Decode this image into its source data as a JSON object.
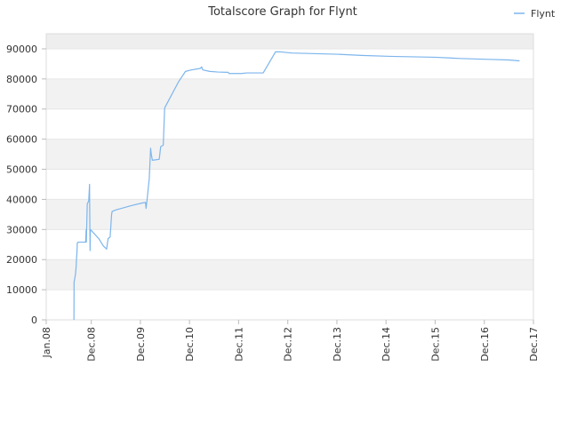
{
  "chart_data": {
    "type": "line",
    "title": "Totalscore Graph for Flynt",
    "xlabel": "",
    "ylabel": "",
    "ylim": [
      0,
      95000
    ],
    "xlim": [
      "2008-01-01",
      "2017-12-01"
    ],
    "grid": true,
    "legend_position": "top-right",
    "y_ticks": [
      0,
      10000,
      20000,
      30000,
      40000,
      50000,
      60000,
      70000,
      80000,
      90000
    ],
    "y_tick_labels": [
      "0",
      "10000",
      "20000",
      "30000",
      "40000",
      "50000",
      "60000",
      "70000",
      "80000",
      "90000"
    ],
    "x_ticks": [
      "2008-01-01",
      "2008-12-01",
      "2009-12-01",
      "2010-12-01",
      "2011-12-01",
      "2012-12-01",
      "2013-12-01",
      "2014-12-01",
      "2015-12-01",
      "2016-12-01",
      "2017-12-01"
    ],
    "x_tick_labels": [
      "Jan.08",
      "Dec.08",
      "Dec.09",
      "Dec.10",
      "Dec.11",
      "Dec.12",
      "Dec.13",
      "Dec.14",
      "Dec.15",
      "Dec.16",
      "Dec.17"
    ],
    "series": [
      {
        "name": "Flynt",
        "color": "#7cb5ec",
        "points": [
          [
            "2008-07-25",
            0
          ],
          [
            "2008-07-26",
            12500
          ],
          [
            "2008-08-01",
            14000
          ],
          [
            "2008-08-05",
            15000
          ],
          [
            "2008-08-10",
            17500
          ],
          [
            "2008-08-14",
            21000
          ],
          [
            "2008-08-16",
            22000
          ],
          [
            "2008-08-19",
            25500
          ],
          [
            "2008-08-25",
            25800
          ],
          [
            "2008-09-10",
            25800
          ],
          [
            "2008-10-20",
            25800
          ],
          [
            "2008-10-24",
            30000
          ],
          [
            "2008-10-25",
            25800
          ],
          [
            "2008-11-01",
            38500
          ],
          [
            "2008-11-12",
            39500
          ],
          [
            "2008-11-18",
            45000
          ],
          [
            "2008-11-19",
            38000
          ],
          [
            "2008-11-22",
            23000
          ],
          [
            "2008-11-24",
            30000
          ],
          [
            "2008-12-15",
            29000
          ],
          [
            "2009-01-25",
            27000
          ],
          [
            "2009-03-01",
            24500
          ],
          [
            "2009-03-25",
            23500
          ],
          [
            "2009-04-05",
            27000
          ],
          [
            "2009-04-20",
            27500
          ],
          [
            "2009-05-01",
            35000
          ],
          [
            "2009-05-05",
            36000
          ],
          [
            "2009-06-01",
            36500
          ],
          [
            "2009-10-01",
            38000
          ],
          [
            "2009-12-15",
            38800
          ],
          [
            "2010-01-08",
            39000
          ],
          [
            "2010-01-12",
            37000
          ],
          [
            "2010-01-20",
            40000
          ],
          [
            "2010-02-05",
            47000
          ],
          [
            "2010-02-15",
            57000
          ],
          [
            "2010-02-20",
            55000
          ],
          [
            "2010-02-28",
            53000
          ],
          [
            "2010-04-20",
            53300
          ],
          [
            "2010-05-01",
            57500
          ],
          [
            "2010-05-20",
            58000
          ],
          [
            "2010-05-30",
            70000
          ],
          [
            "2010-06-01",
            70500
          ],
          [
            "2010-09-10",
            79000
          ],
          [
            "2010-11-01",
            82500
          ],
          [
            "2010-12-15",
            83000
          ],
          [
            "2011-02-20",
            83500
          ],
          [
            "2011-03-01",
            84000
          ],
          [
            "2011-03-10",
            83000
          ],
          [
            "2011-05-01",
            82500
          ],
          [
            "2011-07-01",
            82300
          ],
          [
            "2011-09-15",
            82200
          ],
          [
            "2011-09-20",
            81800
          ],
          [
            "2011-12-20",
            81800
          ],
          [
            "2012-02-01",
            82000
          ],
          [
            "2012-06-01",
            82000
          ],
          [
            "2012-09-01",
            89000
          ],
          [
            "2012-10-01",
            89000
          ],
          [
            "2013-01-01",
            88600
          ],
          [
            "2013-12-01",
            88200
          ],
          [
            "2014-06-01",
            87800
          ],
          [
            "2015-01-01",
            87500
          ],
          [
            "2015-12-01",
            87200
          ],
          [
            "2016-06-01",
            86800
          ],
          [
            "2017-01-01",
            86500
          ],
          [
            "2017-06-01",
            86300
          ],
          [
            "2017-08-20",
            86000
          ]
        ]
      }
    ]
  }
}
